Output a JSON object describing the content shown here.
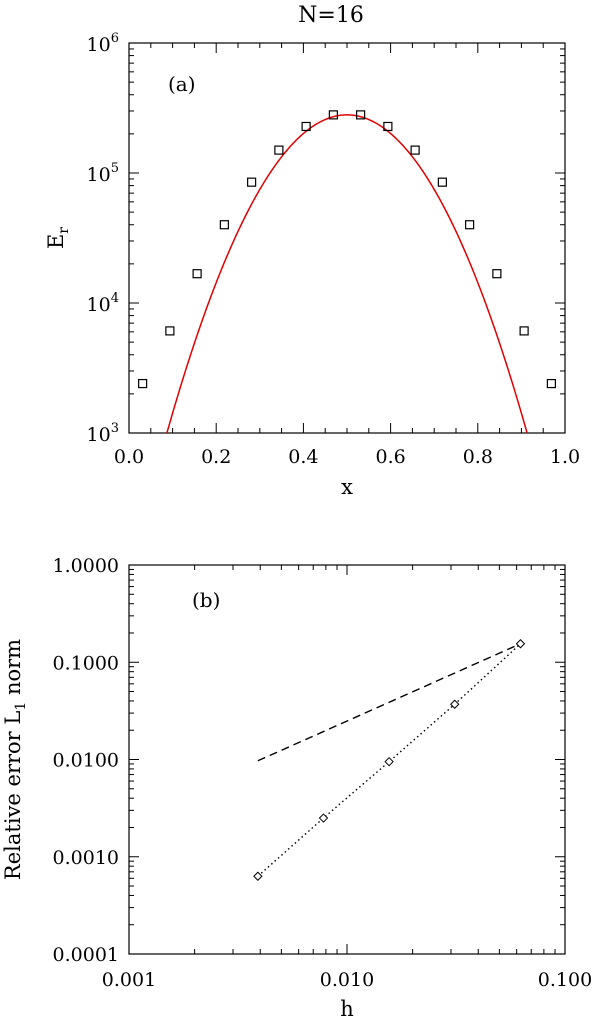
{
  "title": "N=16",
  "chart_data": [
    {
      "type": "scatter",
      "panel_label": "(a)",
      "xlabel": "x",
      "ylabel": {
        "base": "E",
        "subscript": "r"
      },
      "xlim": [
        0.0,
        1.0
      ],
      "ylim": [
        1000,
        1000000
      ],
      "yscale": "log",
      "x_ticks": [
        "0.0",
        "0.2",
        "0.4",
        "0.6",
        "0.8",
        "1.0"
      ],
      "y_ticks": [
        {
          "value": 1000,
          "base": "10",
          "exp": "3"
        },
        {
          "value": 10000,
          "base": "10",
          "exp": "4"
        },
        {
          "value": 100000,
          "base": "10",
          "exp": "5"
        },
        {
          "value": 1000000,
          "base": "10",
          "exp": "6"
        }
      ],
      "series": [
        {
          "style": "square-markers",
          "color": "#000000",
          "x": [
            0.03125,
            0.09375,
            0.15625,
            0.21875,
            0.28125,
            0.34375,
            0.40625,
            0.46875,
            0.53125,
            0.59375,
            0.65625,
            0.71875,
            0.78125,
            0.84375,
            0.90625,
            0.96875
          ],
          "y": [
            2400,
            6100,
            16800,
            40000,
            85000,
            150000,
            228000,
            280000,
            280000,
            228000,
            150000,
            85000,
            40000,
            16800,
            6100,
            2400
          ]
        },
        {
          "style": "line",
          "color": "#e00000",
          "function": "2.8e5 * 2.6e-4^((x-0.5)^2/0.25)"
        }
      ]
    },
    {
      "type": "line",
      "panel_label": "(b)",
      "xlabel": "h",
      "ylabel": {
        "parts": [
          "Relative error L",
          "1",
          " norm"
        ]
      },
      "xlim": [
        0.001,
        0.1
      ],
      "ylim": [
        0.0001,
        1.0
      ],
      "xscale": "log",
      "yscale": "log",
      "x_ticks": [
        {
          "value": 0.001,
          "label": "0.001"
        },
        {
          "value": 0.01,
          "label": "0.010"
        },
        {
          "value": 0.1,
          "label": "0.100"
        }
      ],
      "y_ticks": [
        {
          "value": 0.0001,
          "label": "0.0001"
        },
        {
          "value": 0.001,
          "label": "0.0010"
        },
        {
          "value": 0.01,
          "label": "0.0100"
        },
        {
          "value": 0.1,
          "label": "0.1000"
        },
        {
          "value": 1.0,
          "label": "1.0000"
        }
      ],
      "series": [
        {
          "style": "dotted-diamond",
          "color": "#000000",
          "x": [
            0.0039,
            0.0078,
            0.0156,
            0.0312,
            0.0625
          ],
          "y": [
            0.00063,
            0.0025,
            0.0095,
            0.037,
            0.155
          ]
        },
        {
          "style": "dashed",
          "color": "#000000",
          "x": [
            0.0039,
            0.0625
          ],
          "y": [
            0.0097,
            0.155
          ]
        }
      ]
    }
  ]
}
